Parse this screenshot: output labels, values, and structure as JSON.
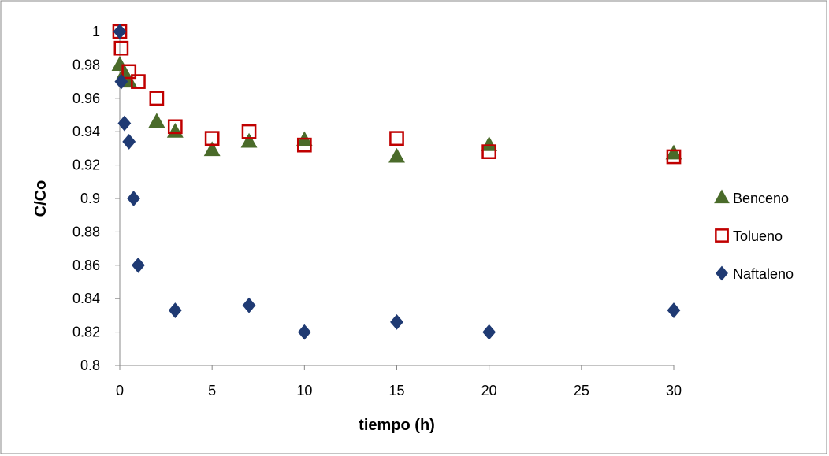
{
  "chart_data": {
    "type": "scatter",
    "title": "",
    "xlabel": "tiempo (h)",
    "ylabel": "C/Co",
    "xlim": [
      0,
      30
    ],
    "ylim": [
      0.8,
      1.0
    ],
    "xticks": [
      0,
      5,
      10,
      15,
      20,
      25,
      30
    ],
    "xtick_labels": [
      "0",
      "5",
      "10",
      "15",
      "20",
      "25",
      "30"
    ],
    "yticks": [
      0.8,
      0.82,
      0.84,
      0.86,
      0.88,
      0.9,
      0.92,
      0.94,
      0.96,
      0.98,
      1.0
    ],
    "ytick_labels": [
      "0.8",
      "0.82",
      "0.84",
      "0.86",
      "0.88",
      "0.9",
      "0.92",
      "0.94",
      "0.96",
      "0.98",
      "1"
    ],
    "grid": false,
    "legend_position": "right",
    "series": [
      {
        "name": "Benceno",
        "marker": "triangle",
        "color": "#4a6b2a",
        "x": [
          0,
          0.25,
          0.5,
          2,
          3,
          5,
          7,
          10,
          15,
          20,
          30
        ],
        "y": [
          0.98,
          0.975,
          0.97,
          0.946,
          0.94,
          0.929,
          0.934,
          0.935,
          0.925,
          0.932,
          0.927
        ]
      },
      {
        "name": "Tolueno",
        "marker": "square-open",
        "color": "#c00000",
        "x": [
          0,
          0.08,
          0.5,
          1,
          2,
          3,
          5,
          7,
          10,
          15,
          20,
          30
        ],
        "y": [
          1.0,
          0.99,
          0.976,
          0.97,
          0.96,
          0.943,
          0.936,
          0.94,
          0.932,
          0.936,
          0.928,
          0.925
        ]
      },
      {
        "name": "Naftaleno",
        "marker": "diamond",
        "color": "#1f3a73",
        "x": [
          0,
          0.08,
          0.25,
          0.5,
          0.75,
          1,
          3,
          7,
          10,
          15,
          20,
          30
        ],
        "y": [
          1.0,
          0.97,
          0.945,
          0.934,
          0.9,
          0.86,
          0.833,
          0.836,
          0.82,
          0.826,
          0.82,
          0.833
        ]
      }
    ]
  }
}
